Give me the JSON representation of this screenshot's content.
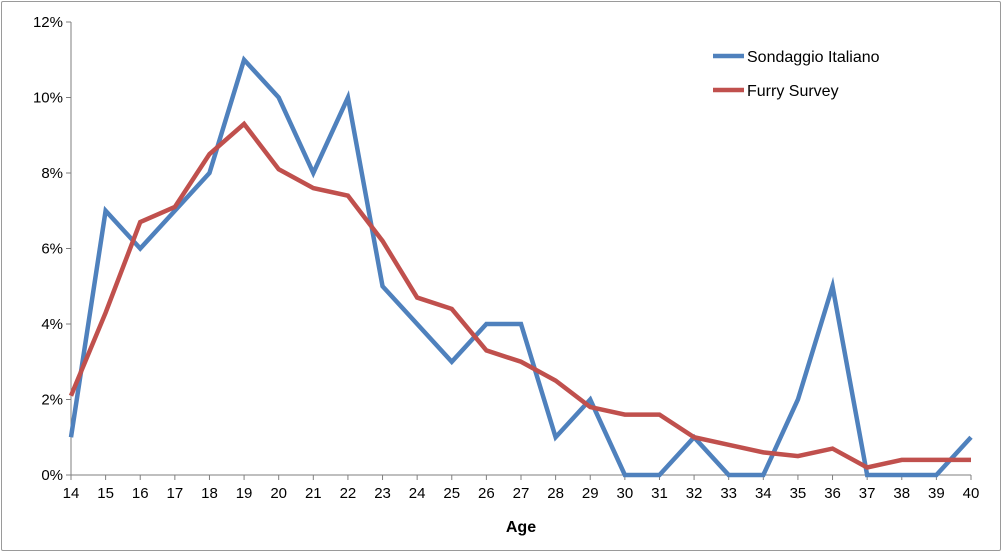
{
  "chart_data": {
    "type": "line",
    "title": "",
    "xlabel": "Age",
    "ylabel": "",
    "x": [
      14,
      15,
      16,
      17,
      18,
      19,
      20,
      21,
      22,
      23,
      24,
      25,
      26,
      27,
      28,
      29,
      30,
      31,
      32,
      33,
      34,
      35,
      36,
      37,
      38,
      39,
      40
    ],
    "ylim": [
      0,
      12
    ],
    "yticks": [
      "0%",
      "2%",
      "4%",
      "6%",
      "8%",
      "10%",
      "12%"
    ],
    "legend_position": "top-right",
    "grid": false,
    "series": [
      {
        "name": "Sondaggio Italiano",
        "color": "#4f81bd",
        "values": [
          1,
          7,
          6,
          7,
          8,
          11,
          10,
          8,
          10,
          5,
          4,
          3,
          4,
          4,
          1,
          2,
          0,
          0,
          1,
          0,
          0,
          2,
          5,
          0,
          0,
          0,
          1
        ]
      },
      {
        "name": "Furry Survey",
        "color": "#c0504d",
        "values": [
          2.1,
          4.3,
          6.7,
          7.1,
          8.5,
          9.3,
          8.1,
          7.6,
          7.4,
          6.2,
          4.7,
          4.4,
          3.3,
          3.0,
          2.5,
          1.8,
          1.6,
          1.6,
          1.0,
          0.8,
          0.6,
          0.5,
          0.7,
          0.2,
          0.4,
          0.4,
          0.4
        ]
      }
    ]
  }
}
